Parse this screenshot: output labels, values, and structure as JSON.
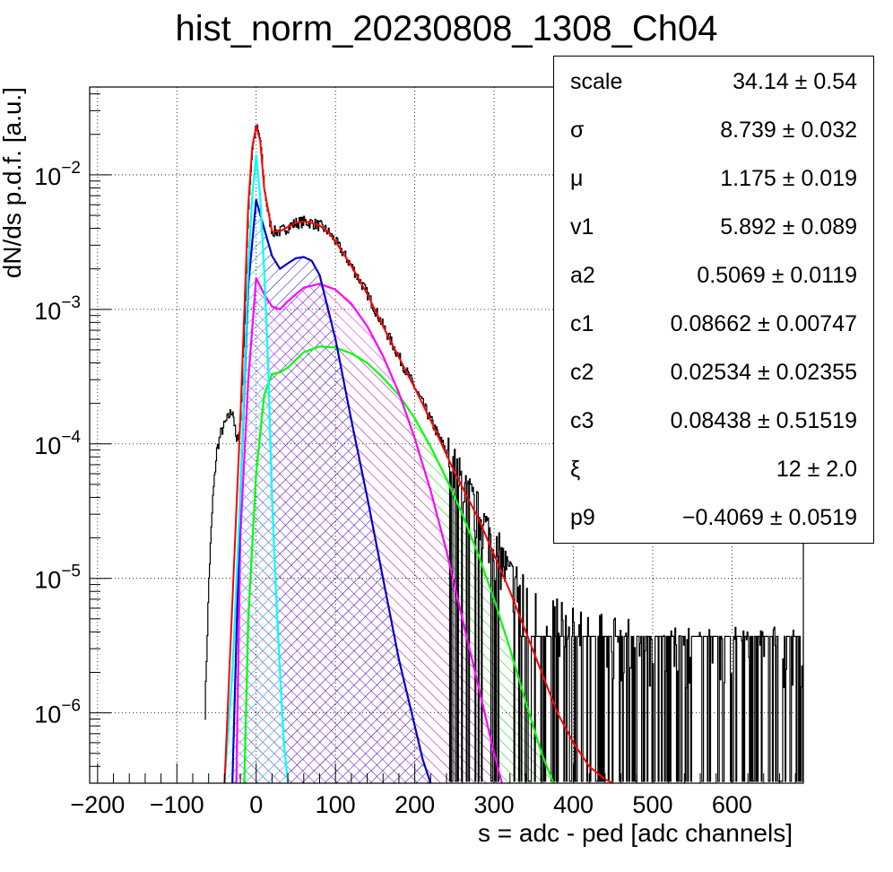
{
  "chart_data": {
    "type": "line",
    "title": "hist_norm_20230808_1308_Ch04",
    "xlabel": "s = adc - ped [adc channels]",
    "ylabel": "dN/ds p.d.f. [a.u.]",
    "xlim": [
      -210,
      690
    ],
    "ylim": [
      3e-07,
      0.045
    ],
    "y_scale": "log",
    "grid": true,
    "x_ticks": [
      "−200",
      "−100",
      "0",
      "100",
      "200",
      "300",
      "400",
      "500",
      "600"
    ],
    "y_ticks": [
      {
        "base": "10",
        "exp": "−2"
      },
      {
        "base": "10",
        "exp": "−3"
      },
      {
        "base": "10",
        "exp": "−4"
      },
      {
        "base": "10",
        "exp": "−5"
      },
      {
        "base": "10",
        "exp": "−6"
      }
    ],
    "series": [
      {
        "color": "#ff0000",
        "hatch": false,
        "x": [
          -40,
          -20,
          -10,
          -5,
          0,
          5,
          10,
          20,
          30,
          40,
          50,
          60,
          70,
          80,
          90,
          100,
          120,
          140,
          160,
          180,
          200,
          220,
          250,
          280,
          300,
          320,
          340,
          360,
          380,
          400,
          420,
          440,
          450
        ],
        "y": [
          3e-07,
          0.00015,
          0.006,
          0.016,
          0.023,
          0.018,
          0.008,
          0.0038,
          0.0038,
          0.0041,
          0.0044,
          0.0045,
          0.0044,
          0.0042,
          0.0038,
          0.0032,
          0.0021,
          0.0013,
          0.00075,
          0.00044,
          0.00026,
          0.00015,
          6.2e-05,
          2.8e-05,
          1.5e-05,
          8e-06,
          4e-06,
          2e-06,
          1e-06,
          6e-07,
          4e-07,
          3.2e-07,
          3e-07
        ]
      },
      {
        "color": "#00ffff",
        "hatch": true,
        "x": [
          -40,
          -30,
          -20,
          -10,
          -5,
          0,
          5,
          10,
          15,
          20,
          25,
          30,
          35,
          40
        ],
        "y": [
          3e-07,
          2e-06,
          4e-05,
          0.002,
          0.007,
          0.014,
          0.007,
          0.002,
          0.0004,
          4e-05,
          8e-06,
          2e-06,
          6e-07,
          3e-07
        ]
      },
      {
        "color": "#0000cc",
        "hatch": true,
        "x": [
          -30,
          -20,
          -10,
          0,
          10,
          20,
          30,
          40,
          50,
          60,
          70,
          80,
          100,
          120,
          140,
          160,
          180,
          200,
          210,
          220
        ],
        "y": [
          3e-07,
          4e-05,
          0.0015,
          0.0065,
          0.004,
          0.0025,
          0.002,
          0.0022,
          0.0024,
          0.00245,
          0.0023,
          0.0018,
          0.0006,
          0.00015,
          4e-05,
          1e-05,
          2.5e-06,
          8e-07,
          4.5e-07,
          3e-07
        ]
      },
      {
        "color": "#ff00ff",
        "hatch": true,
        "x": [
          -25,
          -20,
          -10,
          0,
          10,
          20,
          30,
          40,
          60,
          80,
          100,
          120,
          140,
          160,
          180,
          200,
          220,
          240,
          260,
          280,
          300,
          310
        ],
        "y": [
          3e-07,
          2e-05,
          0.0003,
          0.0017,
          0.0013,
          0.00105,
          0.001,
          0.00115,
          0.00145,
          0.00155,
          0.0014,
          0.0011,
          0.00075,
          0.00045,
          0.00024,
          0.00011,
          4.5e-05,
          1.6e-05,
          5e-06,
          1.6e-06,
          5e-07,
          3e-07
        ]
      },
      {
        "color": "#00ff00",
        "hatch": true,
        "x": [
          -15,
          -10,
          0,
          10,
          20,
          30,
          40,
          60,
          80,
          100,
          120,
          140,
          160,
          180,
          200,
          220,
          240,
          260,
          280,
          300,
          320,
          340,
          360,
          375
        ],
        "y": [
          3e-07,
          5e-06,
          6e-05,
          0.00023,
          0.00033,
          0.00034,
          0.00037,
          0.00048,
          0.00053,
          0.00052,
          0.00047,
          0.0004,
          0.00031,
          0.00023,
          0.000155,
          9.5e-05,
          5.5e-05,
          3e-05,
          1.5e-05,
          7e-06,
          3e-06,
          1.2e-06,
          5e-07,
          3e-07
        ]
      }
    ],
    "histogram": {
      "color": "#000000",
      "x": [
        -65,
        -60,
        -55,
        -50,
        -45,
        -40,
        -35,
        -30,
        -25,
        -20,
        -15,
        -10,
        -5,
        0,
        5,
        10,
        15,
        20,
        30,
        40,
        50,
        60,
        70,
        80,
        90,
        100,
        120,
        140,
        160,
        180,
        200,
        220,
        250,
        280,
        300,
        320,
        340,
        360,
        380,
        400,
        450,
        500,
        550,
        600,
        650,
        690
      ],
      "y": [
        1e-06,
        1e-05,
        4e-05,
        9e-05,
        0.00012,
        0.00014,
        0.00016,
        0.00018,
        0.0001,
        0.00015,
        0.0008,
        0.006,
        0.016,
        0.023,
        0.018,
        0.008,
        0.005,
        0.0038,
        0.0038,
        0.0041,
        0.0044,
        0.0045,
        0.0044,
        0.0042,
        0.0038,
        0.0032,
        0.0021,
        0.0013,
        0.00075,
        0.00044,
        0.00026,
        0.00015,
        6.5e-05,
        3e-05,
        1.8e-05,
        1e-05,
        8e-06,
        6e-06,
        5e-06,
        4e-06,
        3.5e-06,
        3e-06,
        3e-06,
        3e-06,
        3e-06,
        3e-06
      ]
    }
  },
  "stats": [
    {
      "name": "scale",
      "value": "34.14 ± 0.54"
    },
    {
      "name": "σ",
      "value": "8.739 ± 0.032"
    },
    {
      "name": "μ",
      "value": "1.175 ± 0.019"
    },
    {
      "name": "v1",
      "value": "5.892 ± 0.089"
    },
    {
      "name": "a2",
      "value": "0.5069 ± 0.0119"
    },
    {
      "name": "c1",
      "value": "0.08662 ± 0.00747"
    },
    {
      "name": "c2",
      "value": "0.02534 ± 0.02355"
    },
    {
      "name": "c3",
      "value": "0.08438 ± 0.51519"
    },
    {
      "name": "ξ",
      "value": "12 ± 2.0"
    },
    {
      "name": "p9",
      "value": "−0.4069 ± 0.0519"
    }
  ]
}
